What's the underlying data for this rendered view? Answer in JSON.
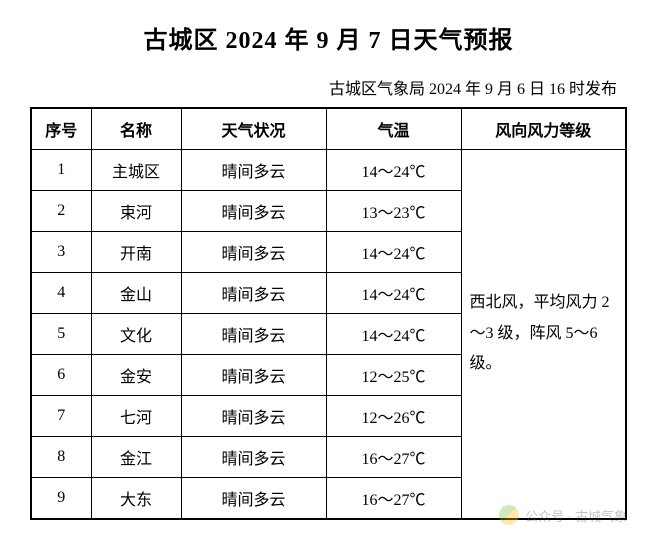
{
  "title": "古城区 2024 年 9 月 7 日天气预报",
  "publish_info": "古城区气象局 2024 年 9 月 6 日 16 时发布",
  "table": {
    "headers": {
      "seq": "序号",
      "name": "名称",
      "weather": "天气状况",
      "temp": "气温",
      "wind": "风向风力等级"
    },
    "rows": [
      {
        "seq": "1",
        "name": "主城区",
        "weather": "晴间多云",
        "temp": "14～24℃"
      },
      {
        "seq": "2",
        "name": "束河",
        "weather": "晴间多云",
        "temp": "13～23℃"
      },
      {
        "seq": "3",
        "name": "开南",
        "weather": "晴间多云",
        "temp": "14～24℃"
      },
      {
        "seq": "4",
        "name": "金山",
        "weather": "晴间多云",
        "temp": "14～24℃"
      },
      {
        "seq": "5",
        "name": "文化",
        "weather": "晴间多云",
        "temp": "14～24℃"
      },
      {
        "seq": "6",
        "name": "金安",
        "weather": "晴间多云",
        "temp": "12～25℃"
      },
      {
        "seq": "7",
        "name": "七河",
        "weather": "晴间多云",
        "temp": "12～26℃"
      },
      {
        "seq": "8",
        "name": "金江",
        "weather": "晴间多云",
        "temp": "16～27℃"
      },
      {
        "seq": "9",
        "name": "大东",
        "weather": "晴间多云",
        "temp": "16～27℃"
      }
    ],
    "wind_text": "西北风，平均风力 2～3 级，阵风 5～6 级。"
  },
  "watermark": {
    "text": "公众号 · 古城气象"
  },
  "styling": {
    "background_color": "#ffffff",
    "border_color": "#000000",
    "title_fontsize": 24,
    "body_fontsize": 16,
    "font_family": "SimSun"
  }
}
